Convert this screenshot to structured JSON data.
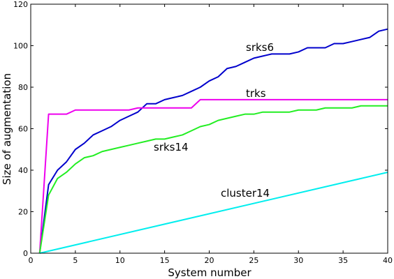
{
  "chart_data": {
    "type": "line",
    "title": "",
    "xlabel": "System number",
    "ylabel": "Size of augmentation",
    "xlim": [
      0,
      40
    ],
    "ylim": [
      0,
      120
    ],
    "xticks": [
      "0",
      "5",
      "10",
      "15",
      "20",
      "25",
      "30",
      "35",
      "40"
    ],
    "yticks": [
      "0",
      "20",
      "40",
      "60",
      "80",
      "100",
      "120"
    ],
    "grid": false,
    "legend": "none",
    "series": [
      {
        "name": "srks6",
        "color": "#0000cc",
        "x": [
          1,
          2,
          3,
          4,
          5,
          6,
          7,
          8,
          9,
          10,
          11,
          12,
          13,
          14,
          15,
          16,
          17,
          18,
          19,
          20,
          21,
          22,
          23,
          24,
          25,
          26,
          27,
          28,
          29,
          30,
          31,
          32,
          33,
          34,
          35,
          36,
          37,
          38,
          39,
          40
        ],
        "y": [
          0,
          33,
          40,
          44,
          50,
          53,
          57,
          59,
          61,
          64,
          66,
          68,
          72,
          72,
          74,
          75,
          76,
          78,
          80,
          83,
          85,
          89,
          90,
          92,
          94,
          95,
          96,
          96,
          96,
          97,
          99,
          99,
          99,
          101,
          101,
          102,
          103,
          104,
          107,
          108
        ]
      },
      {
        "name": "trks",
        "color": "#ee00ee",
        "x": [
          1,
          2,
          3,
          4,
          5,
          6,
          7,
          8,
          9,
          10,
          11,
          12,
          13,
          14,
          15,
          16,
          17,
          18,
          19,
          20,
          21,
          22,
          23,
          24,
          25,
          26,
          27,
          28,
          29,
          30,
          31,
          32,
          33,
          34,
          35,
          36,
          37,
          38,
          39,
          40
        ],
        "y": [
          0,
          67,
          67,
          67,
          69,
          69,
          69,
          69,
          69,
          69,
          69,
          70,
          70,
          70,
          70,
          70,
          70,
          70,
          74,
          74,
          74,
          74,
          74,
          74,
          74,
          74,
          74,
          74,
          74,
          74,
          74,
          74,
          74,
          74,
          74,
          74,
          74,
          74,
          74,
          74
        ]
      },
      {
        "name": "srks14",
        "color": "#22ee22",
        "x": [
          1,
          2,
          3,
          4,
          5,
          6,
          7,
          8,
          9,
          10,
          11,
          12,
          13,
          14,
          15,
          16,
          17,
          18,
          19,
          20,
          21,
          22,
          23,
          24,
          25,
          26,
          27,
          28,
          29,
          30,
          31,
          32,
          33,
          34,
          35,
          36,
          37,
          38,
          39,
          40
        ],
        "y": [
          0,
          28,
          36,
          39,
          43,
          46,
          47,
          49,
          50,
          51,
          52,
          53,
          54,
          55,
          55,
          56,
          57,
          59,
          61,
          62,
          64,
          65,
          66,
          67,
          67,
          68,
          68,
          68,
          68,
          69,
          69,
          69,
          70,
          70,
          70,
          70,
          71,
          71,
          71,
          71
        ]
      },
      {
        "name": "cluster14",
        "color": "#00eeee",
        "x": [
          1,
          40
        ],
        "y": [
          0,
          39
        ]
      }
    ],
    "annotations": [
      {
        "text": "srks6",
        "series": "srks6"
      },
      {
        "text": "trks",
        "series": "trks"
      },
      {
        "text": "srks14",
        "series": "srks14"
      },
      {
        "text": "cluster14",
        "series": "cluster14"
      }
    ]
  }
}
